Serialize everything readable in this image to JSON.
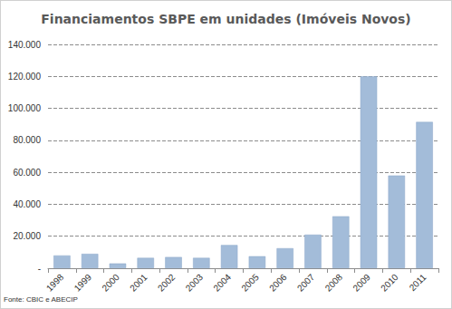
{
  "chart_data": {
    "type": "bar",
    "title": "Financiamentos SBPE em unidades (Imóveis Novos)",
    "source": "Fonte: CBIC e ABECIP",
    "categories": [
      "1998",
      "1999",
      "2000",
      "2001",
      "2002",
      "2003",
      "2004",
      "2005",
      "2006",
      "2007",
      "2008",
      "2009",
      "2010",
      "2011"
    ],
    "values": [
      8000,
      9000,
      3000,
      6500,
      7000,
      6500,
      14500,
      7500,
      12500,
      21000,
      32500,
      120000,
      58000,
      91500
    ],
    "color": "#a3bcd9",
    "ylim": [
      0,
      140000
    ],
    "yticks": [
      {
        "value": 0,
        "label": "-"
      },
      {
        "value": 20000,
        "label": "20.000"
      },
      {
        "value": 40000,
        "label": "40.000"
      },
      {
        "value": 60000,
        "label": "60.000"
      },
      {
        "value": 80000,
        "label": "80.000"
      },
      {
        "value": 100000,
        "label": "100.000"
      },
      {
        "value": 120000,
        "label": "120.000"
      },
      {
        "value": 140000,
        "label": "140.000"
      }
    ],
    "grid": true
  }
}
